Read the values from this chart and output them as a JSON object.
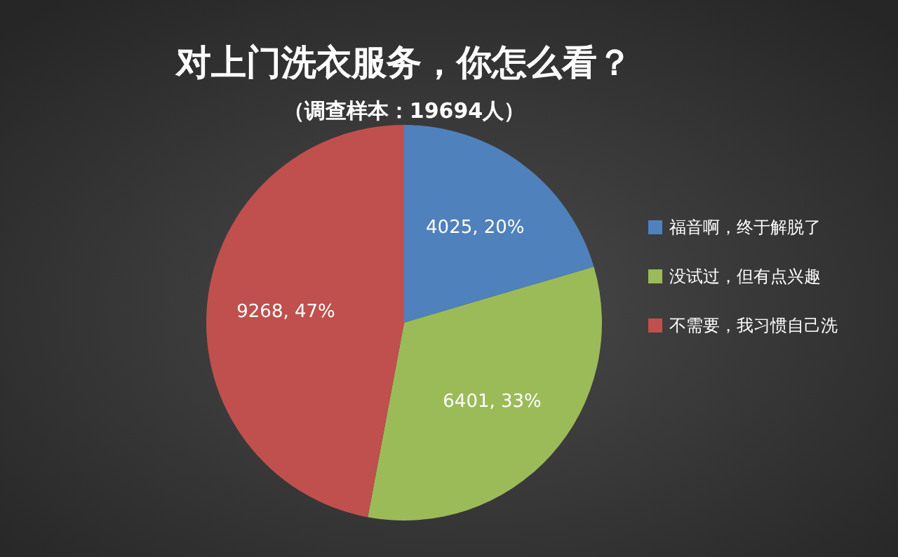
{
  "chart_data": {
    "type": "pie",
    "title": "对上门洗衣服务，你怎么看？",
    "subtitle": "（调查样本：19694人）",
    "categories": [
      "福音啊，终于解脱了",
      "没试过，但有点兴趣",
      "不需要，我习惯自己洗"
    ],
    "values": [
      4025,
      6401,
      9268
    ],
    "colors": [
      "#4f81bd",
      "#9bbb59",
      "#c0504d"
    ],
    "value_labels": [
      "4025, 20%",
      "6401, 33%",
      "9268, 47%"
    ],
    "legend": "right"
  }
}
